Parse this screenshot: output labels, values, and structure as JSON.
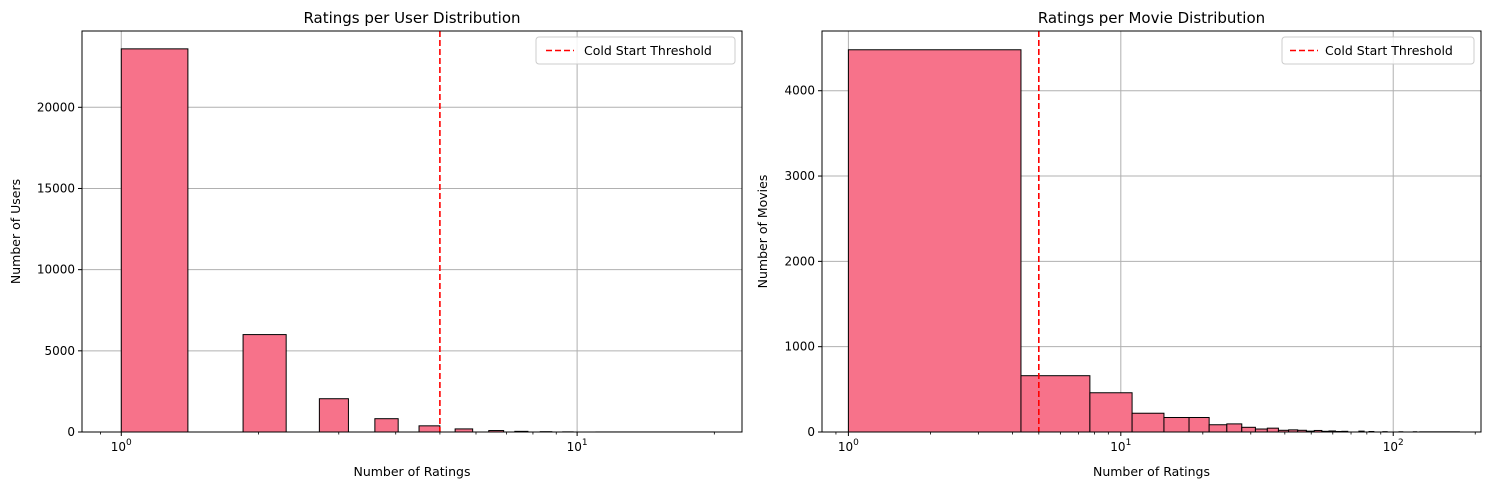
{
  "chart_data": [
    {
      "type": "bar",
      "title": "Ratings per User Distribution",
      "xlabel": "Number of Ratings",
      "ylabel": "Number of Users",
      "x_scale": "log",
      "xlim": [
        0.82,
        23
      ],
      "ylim": [
        0,
        24700
      ],
      "yticks": [
        0,
        5000,
        10000,
        15000,
        20000
      ],
      "xticks": [
        {
          "value": 1,
          "base": "10",
          "exp": "0"
        },
        {
          "value": 10,
          "base": "10",
          "exp": "1"
        }
      ],
      "grid": true,
      "threshold": 5,
      "bars": [
        {
          "x0": 1.0,
          "x1": 1.4,
          "value": 23600
        },
        {
          "x0": 1.85,
          "x1": 2.3,
          "value": 6000
        },
        {
          "x0": 2.72,
          "x1": 3.15,
          "value": 2050
        },
        {
          "x0": 3.6,
          "x1": 4.05,
          "value": 820
        },
        {
          "x0": 4.5,
          "x1": 5.0,
          "value": 380
        },
        {
          "x0": 5.4,
          "x1": 5.9,
          "value": 190
        },
        {
          "x0": 6.4,
          "x1": 6.9,
          "value": 90
        },
        {
          "x0": 7.3,
          "x1": 7.8,
          "value": 40
        },
        {
          "x0": 8.3,
          "x1": 8.8,
          "value": 20
        },
        {
          "x0": 9.3,
          "x1": 9.8,
          "value": 10
        },
        {
          "x0": 11.0,
          "x1": 20.0,
          "value": 3
        }
      ],
      "legend": {
        "label": "Cold Start Threshold",
        "position": "upper right"
      }
    },
    {
      "type": "bar",
      "title": "Ratings per Movie Distribution",
      "xlabel": "Number of Ratings",
      "ylabel": "Number of Movies",
      "x_scale": "log",
      "xlim": [
        0.8,
        210
      ],
      "ylim": [
        0,
        4700
      ],
      "yticks": [
        0,
        1000,
        2000,
        3000,
        4000
      ],
      "xticks": [
        {
          "value": 1,
          "base": "10",
          "exp": "0"
        },
        {
          "value": 10,
          "base": "10",
          "exp": "1"
        },
        {
          "value": 100,
          "base": "10",
          "exp": "2"
        }
      ],
      "grid": true,
      "threshold": 5,
      "bars": [
        {
          "x0": 1.0,
          "x1": 4.3,
          "value": 4480
        },
        {
          "x0": 4.3,
          "x1": 7.7,
          "value": 660
        },
        {
          "x0": 7.7,
          "x1": 11.0,
          "value": 460
        },
        {
          "x0": 11.0,
          "x1": 14.4,
          "value": 220
        },
        {
          "x0": 14.4,
          "x1": 17.8,
          "value": 170
        },
        {
          "x0": 17.8,
          "x1": 21.1,
          "value": 170
        },
        {
          "x0": 21.1,
          "x1": 24.5,
          "value": 85
        },
        {
          "x0": 24.5,
          "x1": 27.8,
          "value": 95
        },
        {
          "x0": 27.8,
          "x1": 31.2,
          "value": 55
        },
        {
          "x0": 31.2,
          "x1": 34.5,
          "value": 35
        },
        {
          "x0": 34.5,
          "x1": 37.9,
          "value": 45
        },
        {
          "x0": 37.9,
          "x1": 41.3,
          "value": 20
        },
        {
          "x0": 41.3,
          "x1": 44.6,
          "value": 25
        },
        {
          "x0": 44.6,
          "x1": 48.0,
          "value": 20
        },
        {
          "x0": 48.0,
          "x1": 51.3,
          "value": 10
        },
        {
          "x0": 51.3,
          "x1": 54.7,
          "value": 18
        },
        {
          "x0": 54.7,
          "x1": 58.1,
          "value": 8
        },
        {
          "x0": 58.1,
          "x1": 61.4,
          "value": 12
        },
        {
          "x0": 61.4,
          "x1": 64.8,
          "value": 6
        },
        {
          "x0": 64.8,
          "x1": 68.1,
          "value": 8
        },
        {
          "x0": 74.8,
          "x1": 78.2,
          "value": 10
        },
        {
          "x0": 81.5,
          "x1": 84.9,
          "value": 6
        },
        {
          "x0": 91.6,
          "x1": 95.0,
          "value": 4
        },
        {
          "x0": 105.0,
          "x1": 108.4,
          "value": 3
        },
        {
          "x0": 118.5,
          "x1": 121.9,
          "value": 3
        },
        {
          "x0": 125.2,
          "x1": 175.0,
          "value": 2
        }
      ],
      "legend": {
        "label": "Cold Start Threshold",
        "position": "upper right"
      }
    }
  ],
  "colors": {
    "bar_fill": "#f7728a",
    "bar_edge": "#000000",
    "threshold": "#ff0000",
    "grid": "#b0b0b0"
  }
}
